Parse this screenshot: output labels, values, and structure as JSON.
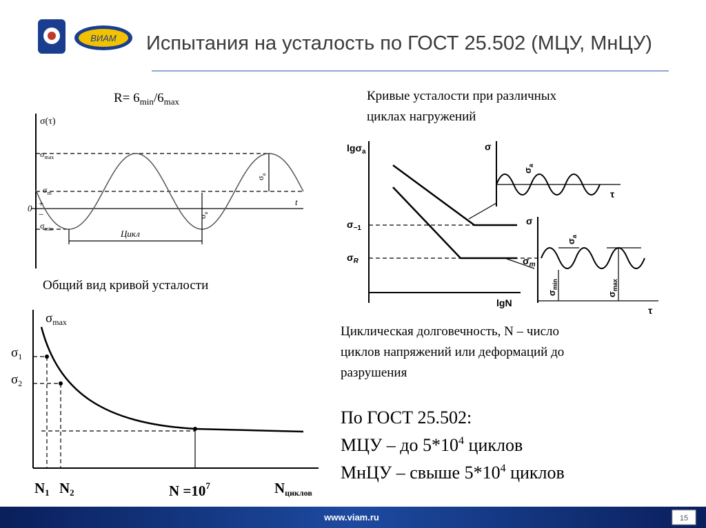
{
  "header": {
    "title": "Испытания на усталость по ГОСТ 25.502 (МЦУ, МнЦУ)",
    "logo_text": "ВИАМ"
  },
  "formula": {
    "lead": "R= 6",
    "sub1": "min",
    "mid": "/6",
    "sub2": "max"
  },
  "right_heading": [
    "Кривые усталости при различных",
    "циклах нагружений"
  ],
  "left_heading": "Общий вид кривой усталости",
  "cycle_diagram": {
    "y_label": "σ(τ)",
    "smax": {
      "base": "σ",
      "sub": "max"
    },
    "sm": {
      "base": "σ",
      "sub": "m"
    },
    "smin": {
      "base": "σ",
      "sub": "min"
    },
    "zero": "0",
    "plus": "+",
    "minus": "−",
    "t": "t",
    "cycle": "Цикл",
    "sa": {
      "base": "σ",
      "sub": "a"
    }
  },
  "fatigue_curve": {
    "smax": {
      "base": "σ",
      "sub": "max"
    },
    "s1": {
      "base": "σ",
      "sub": "1"
    },
    "s2": {
      "base": "σ",
      "sub": "2"
    },
    "n1": {
      "base": "N",
      "sub": "1"
    },
    "n2": {
      "base": "N",
      "sub": "2"
    },
    "n": {
      "base": "N =10",
      "sup": "7"
    },
    "ncycles": {
      "base": "N",
      "sub": "циклов"
    }
  },
  "curves_diagram": {
    "y_label": {
      "base": "lgσ",
      "sub": "a"
    },
    "s_1": {
      "base": "σ",
      "sub": "−1"
    },
    "sR": {
      "base": "σ",
      "sub": "R"
    },
    "x_label": "lgN",
    "inset1": {
      "s": "σ",
      "sa": {
        "base": "σ",
        "sub": "a"
      },
      "tau": "τ"
    },
    "inset2": {
      "s": "σ",
      "sa": {
        "base": "σ",
        "sub": "a"
      },
      "sm": {
        "base": "σ",
        "sub": "m"
      },
      "smin": {
        "base": "σ",
        "sub": "min"
      },
      "smax": {
        "base": "σ",
        "sub": "max"
      },
      "tau": "τ"
    }
  },
  "definition": [
    "Циклическая долговечность, N – число",
    "циклов  напряжений или деформаций до",
    "разрушения"
  ],
  "gost": {
    "line1": "По ГОСТ 25.502:",
    "line2": {
      "a": "МЦУ – до 5*10",
      "sup": "4",
      "b": " циклов"
    },
    "line3": {
      "a": "МнЦУ – свыше 5*10",
      "sup": "4",
      "b": " циклов"
    }
  },
  "footer": {
    "url": "www.viam.ru",
    "page": "15"
  }
}
